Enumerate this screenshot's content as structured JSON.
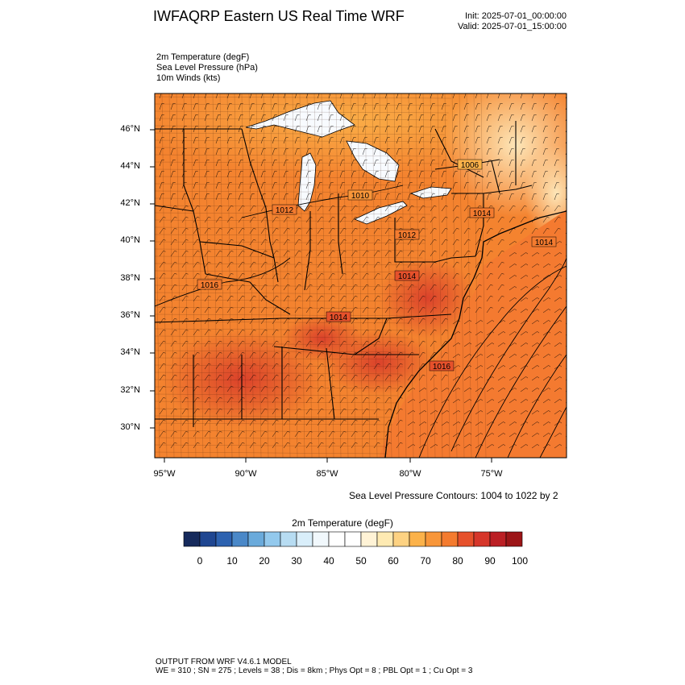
{
  "header": {
    "title": "IWFAQRP Eastern US Real Time WRF",
    "init": "Init: 2025-07-01_00:00:00",
    "valid": "Valid: 2025-07-01_15:00:00"
  },
  "fields": [
    "2m Temperature   (degF)",
    "Sea Level Pressure   (hPa)",
    "10m Winds   (kts)"
  ],
  "map": {
    "lat_labels": [
      "46°N",
      "44°N",
      "42°N",
      "40°N",
      "38°N",
      "36°N",
      "34°N",
      "32°N",
      "30°N"
    ],
    "lon_labels": [
      "95°W",
      "90°W",
      "85°W",
      "80°W",
      "75°W"
    ],
    "pressure_labels": [
      "1006",
      "1010",
      "1012",
      "1014",
      "1012",
      "1014",
      "1016",
      "1014",
      "1014",
      "1016"
    ],
    "contour_note": "Sea Level Pressure Contours: 1004 to 1022 by 2",
    "colors": {
      "hot": "#d6452a",
      "warm": "#f47b2f",
      "mild": "#fbb24a",
      "cool": "#fde0a8",
      "lake": "#ffffff"
    }
  },
  "colorbar": {
    "title": "2m Temperature  (degF)",
    "ticks": [
      "0",
      "10",
      "20",
      "30",
      "40",
      "50",
      "60",
      "70",
      "80",
      "90",
      "100"
    ],
    "colors": [
      "#162a5c",
      "#1f4691",
      "#2d62b0",
      "#4a88c8",
      "#6aaadb",
      "#93c9ed",
      "#b7dcf2",
      "#d9eefa",
      "#f1f8fc",
      "#ffffff",
      "#ffffff",
      "#fff3d6",
      "#feeab2",
      "#fdd282",
      "#fbb24a",
      "#f89639",
      "#f47b2f",
      "#e6512b",
      "#d6362a",
      "#bb1f24",
      "#9c1517"
    ]
  },
  "footer": {
    "line1": "OUTPUT FROM WRF V4.6.1 MODEL",
    "line2": "WE = 310 ; SN = 275 ; Levels = 38 ; Dis = 8km ; Phys Opt = 8 ; PBL Opt = 1 ; Cu Opt = 3"
  }
}
